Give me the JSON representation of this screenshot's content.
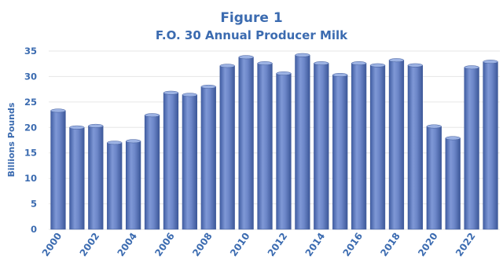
{
  "chart_data": {
    "type": "bar",
    "title": "Figure 1",
    "subtitle": "F.O. 30 Annual Producer Milk",
    "ylabel": "Billions Pounds",
    "xlabel": "",
    "ylim": [
      0,
      35
    ],
    "yticks": [
      0,
      5,
      10,
      15,
      20,
      25,
      30,
      35
    ],
    "grid": true,
    "legend": "none",
    "categories": [
      "2000",
      "2001",
      "2002",
      "2003",
      "2004",
      "2005",
      "2006",
      "2007",
      "2008",
      "2009",
      "2010",
      "2011",
      "2012",
      "2013",
      "2014",
      "2015",
      "2016",
      "2017",
      "2018",
      "2019",
      "2020",
      "2021",
      "2022",
      "2023"
    ],
    "x_tick_labels": [
      "2000",
      "",
      "2002",
      "",
      "2004",
      "",
      "2006",
      "",
      "2008",
      "",
      "2010",
      "",
      "2012",
      "",
      "2014",
      "",
      "2016",
      "",
      "2018",
      "",
      "2020",
      "",
      "2022",
      ""
    ],
    "values": [
      23.3,
      20.0,
      20.3,
      17.0,
      17.3,
      22.4,
      26.8,
      26.4,
      28.0,
      32.1,
      33.8,
      32.6,
      30.6,
      34.2,
      32.6,
      30.3,
      32.6,
      32.2,
      33.2,
      32.2,
      20.2,
      17.9,
      31.8,
      32.9
    ],
    "colors": {
      "bar": "#6b86c8",
      "bar_light": "#9cb2e3",
      "bar_dark": "#3f5a9a",
      "text": "#3b6bb0",
      "grid": "#e6e6e6"
    }
  }
}
